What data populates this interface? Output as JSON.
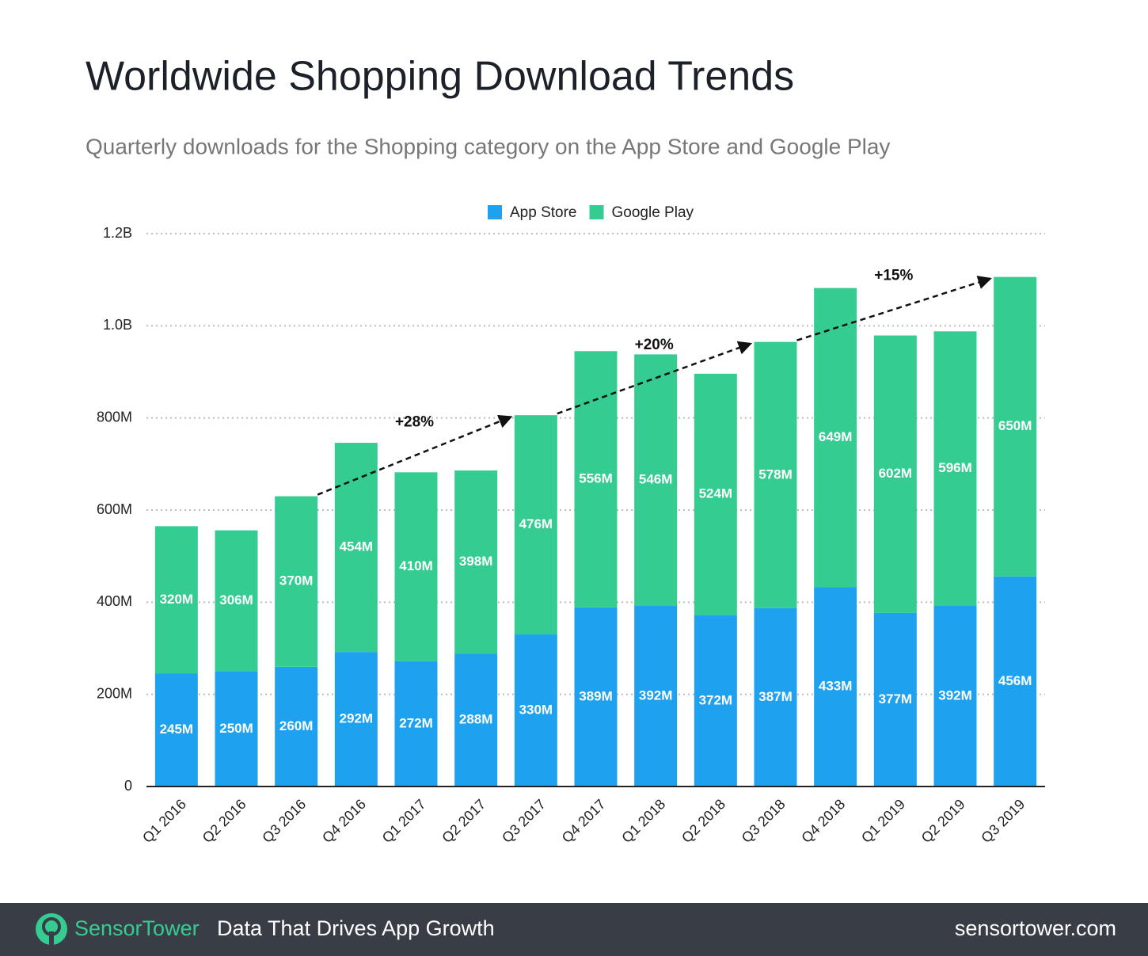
{
  "chart_data": {
    "type": "stacked-bar",
    "title": "Worldwide Shopping Download Trends",
    "subtitle": "Quarterly downloads for the Shopping category on the App Store and Google Play",
    "categories": [
      "Q1 2016",
      "Q2 2016",
      "Q3 2016",
      "Q4 2016",
      "Q1 2017",
      "Q2 2017",
      "Q3 2017",
      "Q4 2017",
      "Q1 2018",
      "Q2 2018",
      "Q3 2018",
      "Q4 2018",
      "Q1 2019",
      "Q2 2019",
      "Q3 2019"
    ],
    "series": [
      {
        "name": "App Store",
        "color": "#1ea1ef",
        "values": [
          245,
          250,
          260,
          292,
          272,
          288,
          330,
          389,
          392,
          372,
          387,
          433,
          377,
          392,
          456
        ],
        "value_labels": [
          "245M",
          "250M",
          "260M",
          "292M",
          "272M",
          "288M",
          "330M",
          "389M",
          "392M",
          "372M",
          "387M",
          "433M",
          "377M",
          "392M",
          "456M"
        ]
      },
      {
        "name": "Google Play",
        "color": "#35cc92",
        "values": [
          320,
          306,
          370,
          454,
          410,
          398,
          476,
          556,
          546,
          524,
          578,
          649,
          602,
          596,
          650
        ],
        "value_labels": [
          "320M",
          "306M",
          "370M",
          "454M",
          "410M",
          "398M",
          "476M",
          "556M",
          "546M",
          "524M",
          "578M",
          "649M",
          "602M",
          "596M",
          "650M"
        ]
      }
    ],
    "ylim": [
      0,
      1200
    ],
    "yticks": [
      {
        "value": 0,
        "label": "0"
      },
      {
        "value": 200,
        "label": "200M"
      },
      {
        "value": 400,
        "label": "400M"
      },
      {
        "value": 600,
        "label": "600M"
      },
      {
        "value": 800,
        "label": "800M"
      },
      {
        "value": 1000,
        "label": "1.0B"
      },
      {
        "value": 1200,
        "label": "1.2B"
      }
    ],
    "grid": true,
    "legend": "top",
    "annotations": [
      "+28%",
      "+20%",
      "+15%"
    ]
  },
  "footer": {
    "brand": "SensorTower",
    "tagline": "Data That Drives App Growth",
    "url": "sensortower.com"
  }
}
